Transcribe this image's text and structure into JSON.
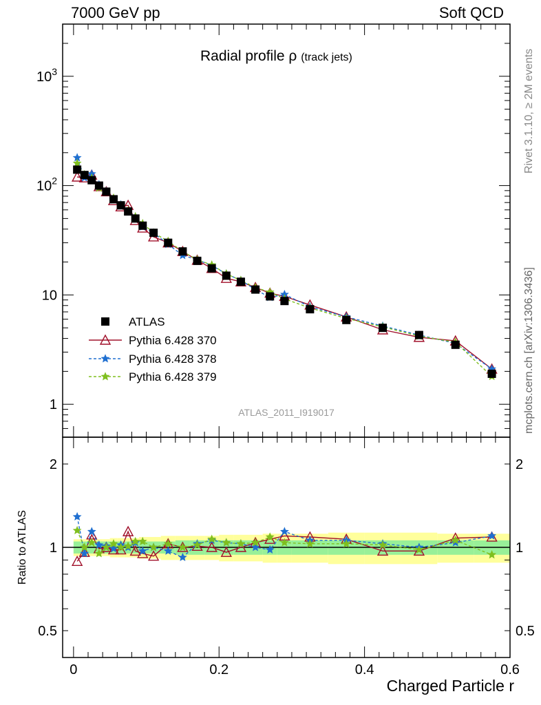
{
  "header": {
    "left": "7000 GeV pp",
    "right": "Soft QCD"
  },
  "side_text": {
    "top": "Rivet 3.1.10, ≥ 2M events",
    "bottom": "mcplots.cern.ch [arXiv:1306.3436]"
  },
  "colors": {
    "data": "#000000",
    "pythia370": "#a0102a",
    "pythia378": "#1f6fd0",
    "pythia379": "#7fbf1f",
    "band_inner": "#98f098",
    "band_outer": "#ffff9c"
  },
  "chart_data": [
    {
      "type": "scatter",
      "title": "Radial profile ρ",
      "title_suffix": "(track jets)",
      "analysis_label": "ATLAS_2011_I919017",
      "yscale": "log",
      "xlim": [
        -0.015,
        0.6
      ],
      "ylim": [
        0.5,
        3000
      ],
      "y_ticks": [
        {
          "value": 1,
          "label": "1"
        },
        {
          "value": 10,
          "label": "10"
        },
        {
          "value": 100,
          "label": "10",
          "exp": "2"
        },
        {
          "value": 1000,
          "label": "10",
          "exp": "3"
        }
      ],
      "x": [
        0.005,
        0.015,
        0.025,
        0.035,
        0.045,
        0.055,
        0.065,
        0.075,
        0.085,
        0.095,
        0.11,
        0.13,
        0.15,
        0.17,
        0.19,
        0.21,
        0.23,
        0.25,
        0.27,
        0.29,
        0.325,
        0.375,
        0.425,
        0.475,
        0.525,
        0.575
      ],
      "series": [
        {
          "name": "ATLAS",
          "key": "data",
          "marker": "square",
          "linestyle": "none",
          "values": [
            140,
            125,
            112,
            100,
            88,
            75,
            66,
            58,
            50,
            43,
            37,
            30,
            25,
            20.5,
            17.5,
            15,
            13.2,
            11.2,
            9.7,
            8.8,
            7.4,
            5.9,
            5.0,
            4.3,
            3.5,
            1.9
          ]
        },
        {
          "name": "Pythia 6.428 370",
          "key": "pythia370",
          "marker": "triangle",
          "linestyle": "solid",
          "values": [
            120,
            118,
            125,
            98,
            88,
            73,
            64,
            66,
            48,
            41,
            34,
            30,
            25,
            20.8,
            17.5,
            14.2,
            13.2,
            11.7,
            10.4,
            9.7,
            8.1,
            6.3,
            4.8,
            4.1,
            3.8,
            2.1
          ]
        },
        {
          "name": "Pythia 6.428 378",
          "key": "pythia378",
          "marker": "star",
          "linestyle": "dashed",
          "values": [
            180,
            118,
            128,
            102,
            89,
            74,
            67,
            58,
            52,
            42,
            37,
            29,
            23,
            21,
            18.6,
            15.6,
            13.6,
            11.2,
            9.5,
            10.1,
            7.8,
            6.3,
            5.2,
            4.3,
            3.6,
            2.1
          ]
        },
        {
          "name": "Pythia 6.428 379",
          "key": "pythia379",
          "marker": "star",
          "linestyle": "dashed",
          "values": [
            160,
            126,
            117,
            95,
            88,
            77,
            66,
            59,
            52,
            45,
            37,
            31,
            25,
            21,
            18.8,
            15.6,
            13.6,
            11.7,
            10.6,
            9.2,
            7.6,
            6.1,
            5.1,
            4.2,
            3.7,
            1.8
          ]
        }
      ]
    },
    {
      "type": "scatter",
      "xlabel": "Charged Particle r",
      "ylabel": "Ratio to ATLAS",
      "yscale": "log",
      "xlim": [
        -0.015,
        0.6
      ],
      "ylim": [
        0.4,
        2.5
      ],
      "x_ticks": [
        {
          "value": 0,
          "label": "0"
        },
        {
          "value": 0.2,
          "label": "0.2"
        },
        {
          "value": 0.4,
          "label": "0.4"
        },
        {
          "value": 0.6,
          "label": "0.6"
        }
      ],
      "y_ticks": [
        {
          "value": 0.5,
          "label": "0.5"
        },
        {
          "value": 1,
          "label": "1"
        },
        {
          "value": 2,
          "label": "2"
        }
      ],
      "band_edges": [
        0,
        0.01,
        0.02,
        0.03,
        0.04,
        0.05,
        0.06,
        0.07,
        0.08,
        0.09,
        0.1,
        0.12,
        0.14,
        0.16,
        0.18,
        0.2,
        0.22,
        0.24,
        0.26,
        0.28,
        0.3,
        0.35,
        0.4,
        0.45,
        0.5,
        0.55,
        0.6
      ],
      "band_inner": [
        0.05,
        0.05,
        0.05,
        0.05,
        0.05,
        0.05,
        0.05,
        0.05,
        0.05,
        0.05,
        0.05,
        0.05,
        0.06,
        0.06,
        0.06,
        0.06,
        0.06,
        0.06,
        0.06,
        0.06,
        0.06,
        0.06,
        0.06,
        0.06,
        0.06,
        0.06
      ],
      "band_outer": [
        0.07,
        0.07,
        0.07,
        0.07,
        0.07,
        0.08,
        0.08,
        0.08,
        0.08,
        0.09,
        0.09,
        0.1,
        0.1,
        0.1,
        0.1,
        0.11,
        0.11,
        0.11,
        0.12,
        0.12,
        0.12,
        0.13,
        0.13,
        0.13,
        0.12,
        0.12
      ],
      "x": [
        0.005,
        0.015,
        0.025,
        0.035,
        0.045,
        0.055,
        0.065,
        0.075,
        0.085,
        0.095,
        0.11,
        0.13,
        0.15,
        0.17,
        0.19,
        0.21,
        0.23,
        0.25,
        0.27,
        0.29,
        0.325,
        0.375,
        0.425,
        0.475,
        0.525,
        0.575
      ],
      "series": [
        {
          "name": "Pythia 6.428 370",
          "key": "pythia370",
          "marker": "triangle",
          "linestyle": "solid",
          "values": [
            0.89,
            0.96,
            1.11,
            0.99,
            1.0,
            0.98,
            0.98,
            1.14,
            0.97,
            0.95,
            0.93,
            1.03,
            1.0,
            1.01,
            1.0,
            0.96,
            1.0,
            1.04,
            1.07,
            1.1,
            1.09,
            1.07,
            0.97,
            0.97,
            1.08,
            1.09
          ]
        },
        {
          "name": "Pythia 6.428 378",
          "key": "pythia378",
          "marker": "star",
          "linestyle": "dashed",
          "values": [
            1.29,
            0.95,
            1.14,
            1.02,
            1.01,
            0.99,
            1.02,
            1.0,
            1.04,
            0.97,
            1.0,
            0.97,
            0.92,
            1.03,
            1.06,
            1.04,
            1.03,
            1.0,
            0.98,
            1.14,
            1.06,
            1.06,
            1.03,
            1.0,
            1.04,
            1.1
          ]
        },
        {
          "name": "Pythia 6.428 379",
          "key": "pythia379",
          "marker": "star",
          "linestyle": "dashed",
          "values": [
            1.15,
            1.0,
            1.04,
            0.95,
            1.0,
            1.03,
            1.0,
            1.01,
            1.05,
            1.05,
            1.0,
            1.03,
            1.0,
            1.02,
            1.07,
            1.04,
            1.03,
            1.04,
            1.09,
            1.04,
            1.03,
            1.03,
            1.02,
            0.98,
            1.06,
            0.94
          ]
        }
      ]
    }
  ]
}
